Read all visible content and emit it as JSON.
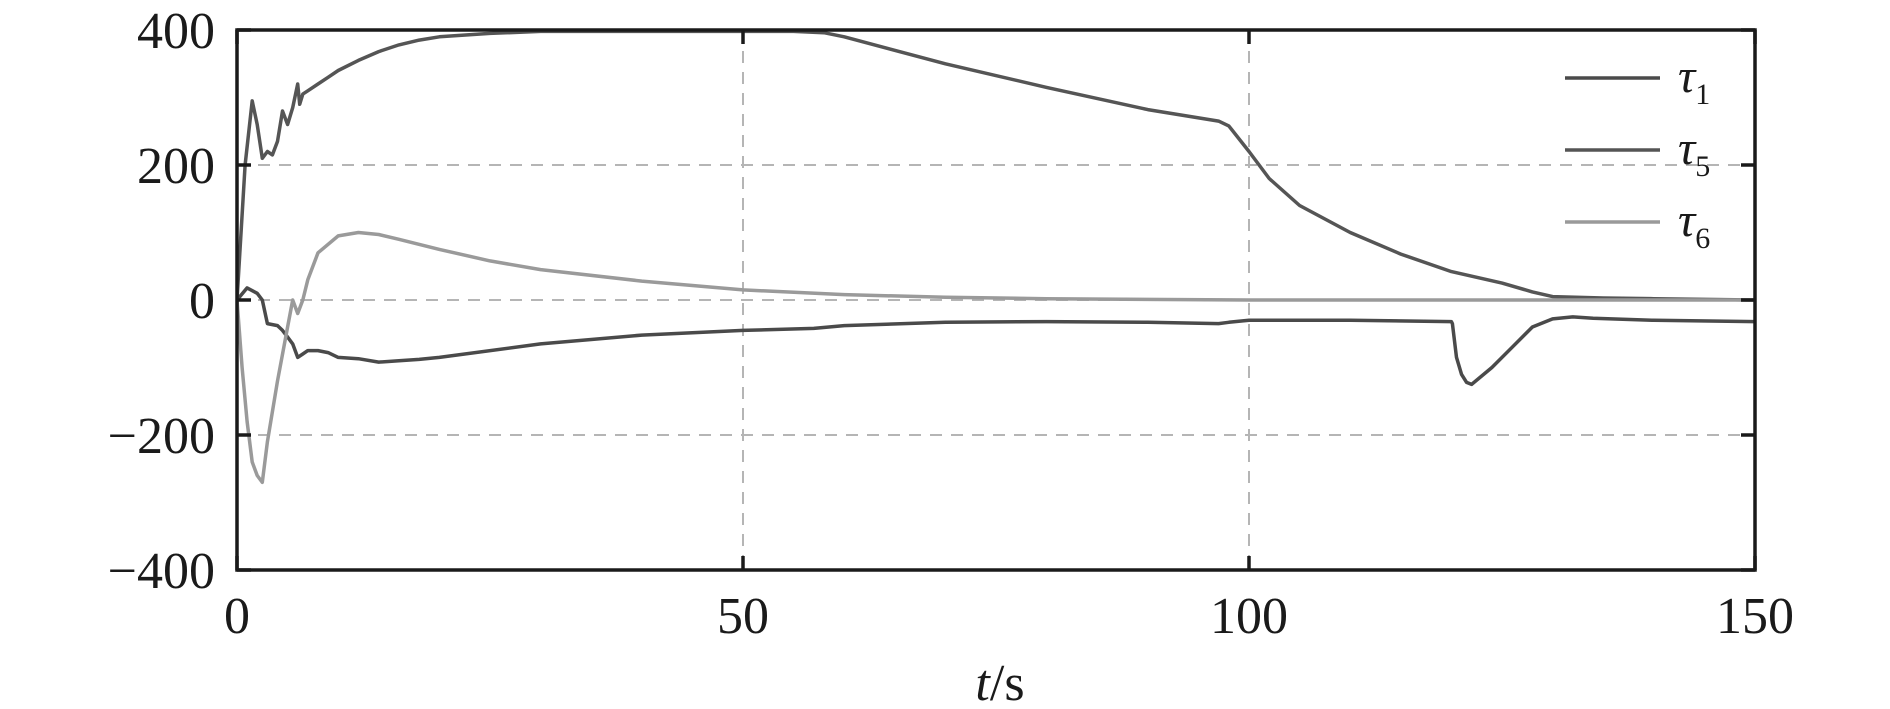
{
  "chart_data": {
    "type": "line",
    "title": "",
    "xlabel_italic": "t",
    "xlabel_unit": "/s",
    "ylabel": "",
    "xlim": [
      0,
      150
    ],
    "ylim": [
      -400,
      400
    ],
    "x_ticks": [
      0,
      50,
      100,
      150
    ],
    "y_ticks": [
      400,
      200,
      0,
      -200,
      -400
    ],
    "y_tick_labels": [
      "400",
      "200",
      "0",
      "−200",
      "−400"
    ],
    "grid": "dashed",
    "legend_position": "top-right",
    "series": [
      {
        "name_symbol": "τ",
        "name_sub": "1",
        "color": "#4a4a4a",
        "x": [
          0,
          1,
          2,
          2.5,
          3,
          4,
          4.5,
          5,
          5.5,
          6,
          6.5,
          7,
          8,
          9,
          10,
          12,
          14,
          16,
          18,
          20,
          30,
          40,
          50,
          57,
          60,
          70,
          80,
          90,
          97,
          98,
          100,
          110,
          120,
          120.1,
          120.5,
          121,
          121.5,
          122,
          124,
          126,
          128,
          130,
          132,
          134,
          140,
          150
        ],
        "y": [
          0,
          18,
          10,
          0,
          -35,
          -38,
          -45,
          -55,
          -65,
          -85,
          -80,
          -75,
          -75,
          -78,
          -85,
          -87,
          -92,
          -90,
          -88,
          -85,
          -65,
          -52,
          -45,
          -42,
          -38,
          -33,
          -32,
          -33,
          -35,
          -33,
          -30,
          -30,
          -32,
          -35,
          -85,
          -110,
          -122,
          -125,
          -100,
          -70,
          -40,
          -28,
          -25,
          -27,
          -30,
          -32
        ]
      },
      {
        "name_symbol": "τ",
        "name_sub": "5",
        "color": "#555555",
        "x": [
          0,
          0.8,
          1.5,
          2,
          2.5,
          3,
          3.5,
          4,
          4.5,
          5,
          5.5,
          6,
          6.2,
          6.5,
          7,
          8,
          9,
          10,
          12,
          14,
          16,
          18,
          20,
          25,
          30,
          40,
          50,
          55,
          58,
          60,
          70,
          80,
          90,
          97,
          98,
          100,
          102,
          105,
          110,
          115,
          120,
          125,
          128,
          130,
          135,
          140,
          150
        ],
        "y": [
          0,
          200,
          295,
          260,
          210,
          220,
          215,
          235,
          280,
          260,
          285,
          320,
          290,
          305,
          310,
          320,
          330,
          340,
          355,
          368,
          378,
          385,
          390,
          395,
          398,
          398,
          398,
          398,
          396,
          390,
          350,
          315,
          282,
          265,
          258,
          220,
          180,
          140,
          100,
          68,
          42,
          25,
          12,
          5,
          3,
          2,
          0
        ]
      },
      {
        "name_symbol": "τ",
        "name_sub": "6",
        "color": "#9a9a9a",
        "x": [
          0,
          0.5,
          1,
          1.5,
          2,
          2.5,
          3,
          4,
          5,
          5.5,
          6,
          6.5,
          7,
          8,
          10,
          12,
          14,
          16,
          20,
          25,
          30,
          40,
          50,
          60,
          70,
          80,
          100,
          120,
          150
        ],
        "y": [
          0,
          -100,
          -180,
          -240,
          -260,
          -270,
          -210,
          -120,
          -40,
          0,
          -20,
          0,
          30,
          70,
          95,
          100,
          97,
          90,
          75,
          58,
          45,
          28,
          15,
          8,
          4,
          2,
          0,
          0,
          0
        ]
      }
    ]
  }
}
